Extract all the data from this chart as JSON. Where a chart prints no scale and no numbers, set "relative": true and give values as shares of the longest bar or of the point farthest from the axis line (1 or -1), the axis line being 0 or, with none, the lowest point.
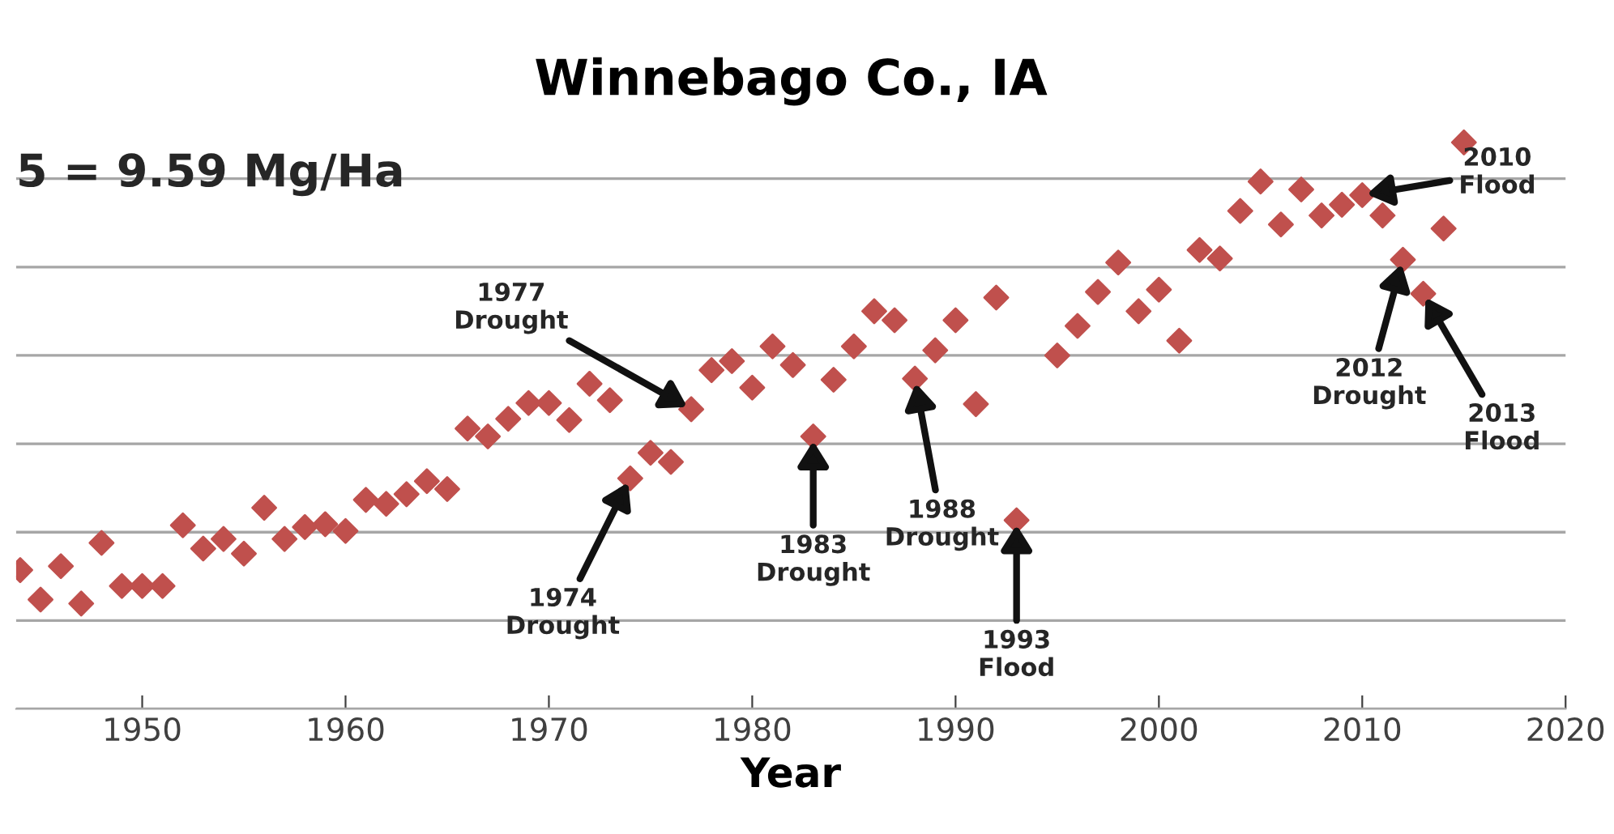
{
  "chart_data": {
    "type": "scatter",
    "title": "Winnebago Co., IA",
    "xlabel": "Year",
    "relative": true,
    "grid": "y",
    "marker": "diamond",
    "legend": false,
    "x": [
      1944,
      1945,
      1946,
      1947,
      1948,
      1949,
      1950,
      1951,
      1952,
      1953,
      1954,
      1955,
      1956,
      1957,
      1958,
      1959,
      1960,
      1961,
      1962,
      1963,
      1964,
      1965,
      1966,
      1967,
      1968,
      1969,
      1970,
      1971,
      1972,
      1973,
      1974,
      1975,
      1976,
      1977,
      1978,
      1979,
      1980,
      1981,
      1982,
      1983,
      1984,
      1985,
      1986,
      1987,
      1988,
      1989,
      1990,
      1991,
      1992,
      1993,
      1995,
      1996,
      1997,
      1998,
      1999,
      2000,
      2001,
      2002,
      2003,
      2004,
      2005,
      2006,
      2007,
      2008,
      2009,
      2010,
      2011,
      2012,
      2013,
      2014,
      2015
    ],
    "series": [
      {
        "color": "#c0504d",
        "values": [
          0.245,
          0.193,
          0.252,
          0.186,
          0.293,
          0.217,
          0.217,
          0.217,
          0.324,
          0.283,
          0.3,
          0.274,
          0.355,
          0.3,
          0.321,
          0.326,
          0.314,
          0.369,
          0.362,
          0.379,
          0.402,
          0.388,
          0.495,
          0.481,
          0.512,
          0.54,
          0.54,
          0.51,
          0.574,
          0.545,
          0.407,
          0.452,
          0.436,
          0.529,
          0.598,
          0.614,
          0.567,
          0.64,
          0.607,
          0.481,
          0.581,
          0.64,
          0.702,
          0.686,
          0.583,
          0.633,
          0.686,
          0.538,
          0.726,
          0.333,
          0.624,
          0.676,
          0.736,
          0.788,
          0.702,
          0.74,
          0.65,
          0.81,
          0.795,
          0.879,
          0.931,
          0.855,
          0.917,
          0.871,
          0.89,
          0.907,
          0.871,
          0.793,
          0.733,
          0.848,
          1.0
        ]
      }
    ],
    "xlim": [
      1943.8,
      2020
    ],
    "xticks": [
      1950,
      1960,
      1970,
      1980,
      1990,
      2000,
      2010,
      2020
    ],
    "annotations": [
      "5 = 9.59 Mg/Ha",
      {
        "text": "1974\nDrought",
        "x": 1974,
        "y": 0.407
      },
      {
        "text": "1977\nDrought",
        "x": 1977,
        "y": 0.529
      },
      {
        "text": "1983\nDrought",
        "x": 1983,
        "y": 0.481
      },
      {
        "text": "1988\nDrought",
        "x": 1988,
        "y": 0.583
      },
      {
        "text": "1993\nFlood",
        "x": 1993,
        "y": 0.333
      },
      {
        "text": "2010\nFlood",
        "x": 2010,
        "y": 0.907
      },
      {
        "text": "2012\nDrought",
        "x": 2012,
        "y": 0.793
      },
      {
        "text": "2013\nFlood",
        "x": 2013,
        "y": 0.733
      }
    ]
  }
}
